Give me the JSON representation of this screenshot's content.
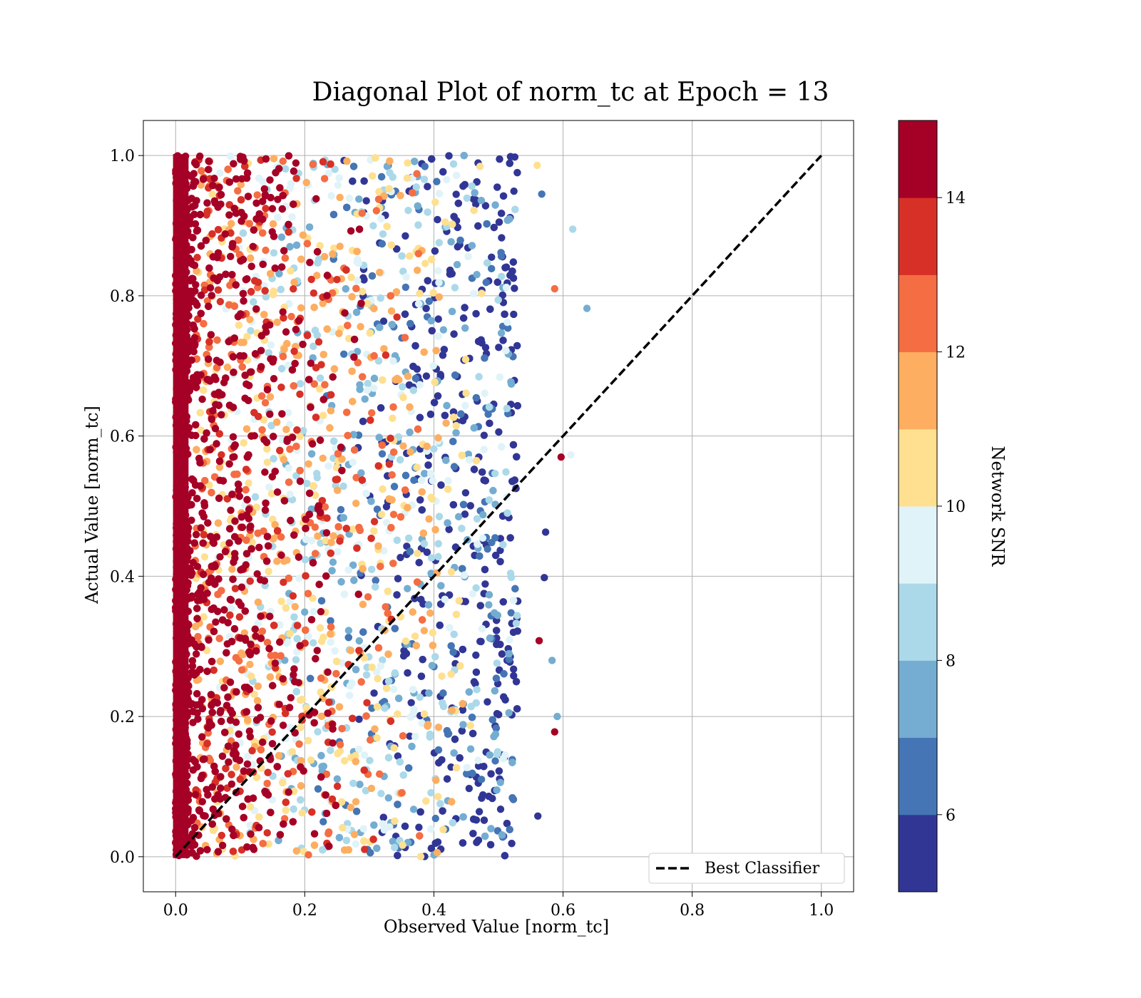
{
  "chart_data": {
    "type": "scatter",
    "title": "Diagonal Plot of norm_tc at Epoch = 13",
    "xlabel": "Observed Value [norm_tc]",
    "ylabel": "Actual Value [norm_tc]",
    "xlim": [
      -0.05,
      1.05
    ],
    "ylim": [
      -0.05,
      1.05
    ],
    "xticks": [
      "0.0",
      "0.2",
      "0.4",
      "0.6",
      "0.8",
      "1.0"
    ],
    "yticks": [
      "0.0",
      "0.2",
      "0.4",
      "0.6",
      "0.8",
      "1.0"
    ],
    "grid": true,
    "legend": {
      "placement": "lower-right",
      "entries": [
        "Best Classifier"
      ]
    },
    "reference_line": {
      "name": "Best Classifier",
      "x": [
        0,
        1
      ],
      "y": [
        0,
        1
      ],
      "style": "dashed",
      "color": "#000000"
    },
    "colorbar": {
      "label": "Network SNR",
      "range": [
        5,
        15
      ],
      "ticks": [
        "6",
        "8",
        "10",
        "12",
        "14"
      ],
      "bins": 10,
      "colors": [
        "#313695",
        "#4575b4",
        "#74add1",
        "#abd9e9",
        "#e0f3f8",
        "#fee090",
        "#fdae61",
        "#f46d43",
        "#d73027",
        "#a50026"
      ]
    },
    "scatter_summary": {
      "x_range": [
        0.0,
        0.64
      ],
      "y_range": [
        0.0,
        1.0
      ],
      "note_points": [
        {
          "x": 0.615,
          "y": 0.895,
          "snr": 8.5
        },
        {
          "x": 0.637,
          "y": 0.782,
          "snr": 7.5
        },
        {
          "x": 0.587,
          "y": 0.81,
          "snr": 12.5
        },
        {
          "x": 0.597,
          "y": 0.57,
          "snr": 14.5
        },
        {
          "x": 0.612,
          "y": 0.573,
          "snr": 9.5
        },
        {
          "x": 0.573,
          "y": 0.463,
          "snr": 5.5
        },
        {
          "x": 0.571,
          "y": 0.398,
          "snr": 5.5
        },
        {
          "x": 0.563,
          "y": 0.308,
          "snr": 14.5
        },
        {
          "x": 0.583,
          "y": 0.28,
          "snr": 7.5
        },
        {
          "x": 0.591,
          "y": 0.2,
          "snr": 7.5
        },
        {
          "x": 0.587,
          "y": 0.178,
          "snr": 14.5
        },
        {
          "x": 0.561,
          "y": 0.058,
          "snr": 5.5
        },
        {
          "x": 0.56,
          "y": 0.986,
          "snr": 10.5
        },
        {
          "x": 0.567,
          "y": 0.945,
          "snr": 6.5
        }
      ]
    }
  }
}
